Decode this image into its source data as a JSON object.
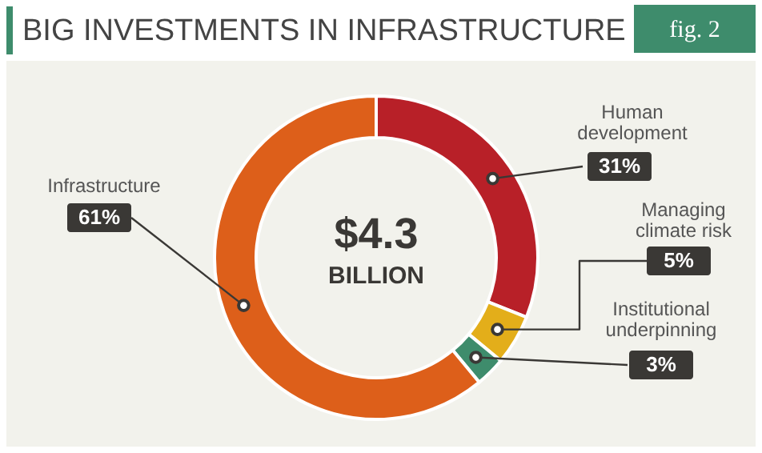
{
  "chart_data": {
    "type": "donut",
    "title": "BIG INVESTMENTS IN INFRASTRUCTURE",
    "categories": [
      "Human development",
      "Managing climate risk",
      "Institutional underpinning",
      "Infrastructure"
    ],
    "values": [
      31,
      5,
      3,
      61
    ],
    "colors": [
      "#b82028",
      "#e3ae1a",
      "#3e8c6c",
      "#dd5f1a"
    ],
    "value_labels": [
      "31%",
      "5%",
      "3%",
      "61%"
    ],
    "annotations": [
      "fig. 2",
      "$4.3",
      "BILLION"
    ]
  }
}
